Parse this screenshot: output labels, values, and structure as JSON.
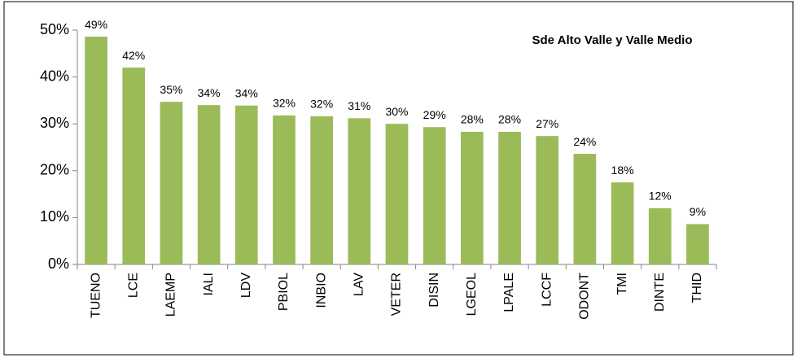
{
  "chart_data": {
    "type": "bar",
    "title": "Sde Alto Valle y Valle Medio",
    "categories": [
      "TUENO",
      "LCE",
      "LAEMP",
      "IALI",
      "LDV",
      "PBIOL",
      "INBIO",
      "LAV",
      "VETER",
      "DISIN",
      "LGEOL",
      "LPALE",
      "LCCF",
      "ODONT",
      "TMI",
      "DINTE",
      "THID"
    ],
    "values": [
      48.6,
      42.0,
      34.7,
      34.0,
      33.9,
      31.8,
      31.6,
      31.2,
      30.0,
      29.3,
      28.3,
      28.3,
      27.4,
      23.6,
      17.5,
      12.0,
      8.6
    ],
    "value_labels": [
      "49%",
      "42%",
      "35%",
      "34%",
      "34%",
      "32%",
      "32%",
      "31%",
      "30%",
      "29%",
      "28%",
      "28%",
      "27%",
      "24%",
      "18%",
      "12%",
      "9%"
    ],
    "color": "#9bbb59",
    "ylim": [
      0,
      50
    ],
    "yticks": [
      {
        "value": 0,
        "label": "0%"
      },
      {
        "value": 10,
        "label": "10%"
      },
      {
        "value": 20,
        "label": "20%"
      },
      {
        "value": 30,
        "label": "30%"
      },
      {
        "value": 40,
        "label": "40%"
      },
      {
        "value": 50,
        "label": "50%"
      }
    ],
    "grid": false
  }
}
